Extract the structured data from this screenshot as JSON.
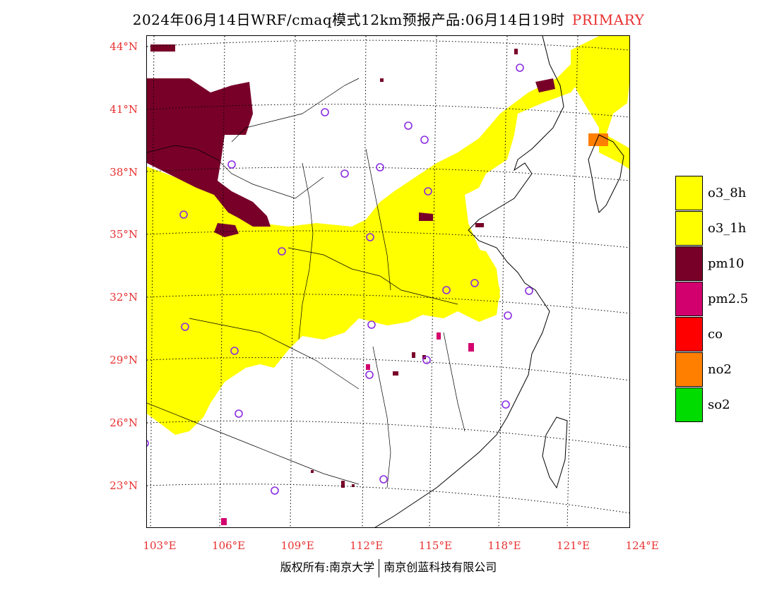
{
  "title": {
    "main": "2024年06月14日WRF/cmaq模式12km预报产品:06月14日19时",
    "tag": "PRIMARY"
  },
  "axes": {
    "lat_labels": [
      {
        "value": 44,
        "text": "44°N"
      },
      {
        "value": 41,
        "text": "41°N"
      },
      {
        "value": 38,
        "text": "38°N"
      },
      {
        "value": 35,
        "text": "35°N"
      },
      {
        "value": 32,
        "text": "32°N"
      },
      {
        "value": 29,
        "text": "29°N"
      },
      {
        "value": 26,
        "text": "26°N"
      },
      {
        "value": 23,
        "text": "23°N"
      }
    ],
    "lon_labels": [
      {
        "value": 103,
        "text": "103°E"
      },
      {
        "value": 106,
        "text": "106°E"
      },
      {
        "value": 109,
        "text": "109°E"
      },
      {
        "value": 112,
        "text": "112°E"
      },
      {
        "value": 115,
        "text": "115°E"
      },
      {
        "value": 118,
        "text": "118°E"
      },
      {
        "value": 121,
        "text": "121°E"
      },
      {
        "value": 124,
        "text": "124°E"
      }
    ]
  },
  "legend": [
    {
      "label": "o3_8h",
      "color": "#ffff00"
    },
    {
      "label": "o3_1h",
      "color": "#ffff00"
    },
    {
      "label": "pm10",
      "color": "#780028"
    },
    {
      "label": "pm2.5",
      "color": "#d2006e"
    },
    {
      "label": "co",
      "color": "#ff0000"
    },
    {
      "label": "no2",
      "color": "#ff7f00"
    },
    {
      "label": "so2",
      "color": "#00dc00"
    }
  ],
  "colors": {
    "accent": "#e83030",
    "o3": "#ffff00",
    "pm10": "#780028",
    "pm25": "#d2006e",
    "no2": "#ff7f00",
    "station": "#8a2be2"
  },
  "footer": {
    "left": "版权所有:南京大学",
    "right": "南京创蓝科技有限公司"
  }
}
